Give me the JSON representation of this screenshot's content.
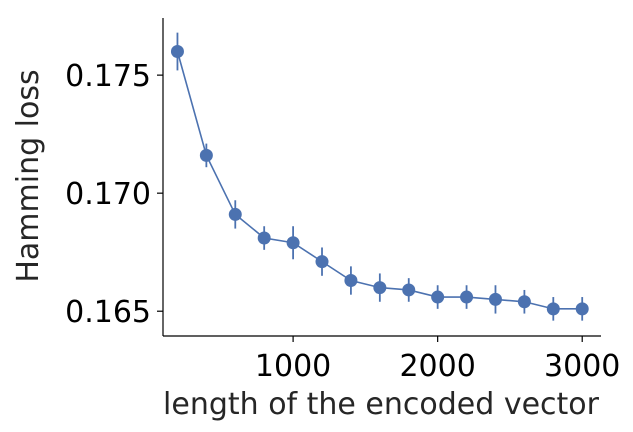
{
  "chart_data": {
    "type": "line",
    "title": "",
    "xlabel": "length of the encoded vector",
    "ylabel": "Hamming loss",
    "xlim": [
      100,
      3130
    ],
    "ylim": [
      0.16395,
      0.17742
    ],
    "xticks": [
      1000,
      2000,
      3000
    ],
    "xtick_labels": [
      "1000",
      "2000",
      "3000"
    ],
    "yticks": [
      0.165,
      0.17,
      0.175
    ],
    "ytick_labels": [
      "0.165",
      "0.170",
      "0.175"
    ],
    "grid": false,
    "color": "#4c72b0",
    "series": [
      {
        "x": [
          200,
          400,
          600,
          800,
          1000,
          1200,
          1400,
          1600,
          1800,
          2000,
          2200,
          2400,
          2600,
          2800,
          3000
        ],
        "y": [
          0.176,
          0.1716,
          0.1691,
          0.1681,
          0.1679,
          0.1671,
          0.1663,
          0.166,
          0.1659,
          0.1656,
          0.1656,
          0.1655,
          0.1654,
          0.1651,
          0.1651
        ],
        "err": [
          0.0008,
          0.0005,
          0.0006,
          0.0005,
          0.0007,
          0.0006,
          0.0006,
          0.0006,
          0.0005,
          0.0005,
          0.0005,
          0.0006,
          0.0005,
          0.0005,
          0.0005
        ]
      }
    ]
  }
}
